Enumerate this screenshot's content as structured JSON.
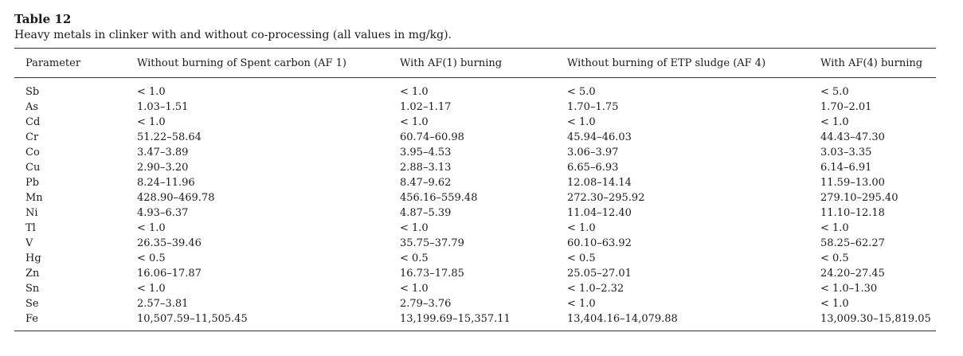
{
  "caption": {
    "label": "Table 12",
    "description": "Heavy metals in clinker with and without co-processing (all values in mg/kg)."
  },
  "table": {
    "headers": [
      "Parameter",
      "Without burning of Spent carbon (AF 1)",
      "With AF(1) burning",
      "Without burning of ETP sludge (AF 4)",
      "With AF(4) burning"
    ],
    "rows": [
      [
        "Sb",
        " < 1.0",
        " < 1.0",
        " < 5.0",
        " < 5.0"
      ],
      [
        "As",
        "1.03–1.51",
        "1.02–1.17",
        "1.70–1.75",
        "1.70–2.01"
      ],
      [
        "Cd",
        " < 1.0",
        " < 1.0",
        " < 1.0",
        " < 1.0"
      ],
      [
        "Cr",
        "51.22–58.64",
        "60.74–60.98",
        "45.94–46.03",
        "44.43–47.30"
      ],
      [
        "Co",
        "3.47–3.89",
        "3.95–4.53",
        "3.06–3.97",
        "3.03–3.35"
      ],
      [
        "Cu",
        "2.90–3.20",
        "2.88–3.13",
        "6.65–6.93",
        "6.14–6.91"
      ],
      [
        "Pb",
        "8.24–11.96",
        "8.47–9.62",
        "12.08–14.14",
        "11.59–13.00"
      ],
      [
        "Mn",
        "428.90–469.78",
        "456.16–559.48",
        "272.30–295.92",
        "279.10–295.40"
      ],
      [
        "Ni",
        "4.93–6.37",
        "4.87–5.39",
        "11.04–12.40",
        "11.10–12.18"
      ],
      [
        "Tl",
        " < 1.0",
        " < 1.0",
        " < 1.0",
        " < 1.0"
      ],
      [
        "V",
        "26.35–39.46",
        "35.75–37.79",
        "60.10–63.92",
        "58.25–62.27"
      ],
      [
        "Hg",
        " < 0.5",
        " < 0.5",
        " < 0.5",
        " < 0.5"
      ],
      [
        "Zn",
        "16.06–17.87",
        "16.73–17.85",
        "25.05–27.01",
        "24.20–27.45"
      ],
      [
        "Sn",
        " < 1.0",
        " < 1.0",
        " < 1.0–2.32",
        " < 1.0–1.30"
      ],
      [
        "Se",
        "2.57–3.81",
        "2.79–3.76",
        " < 1.0",
        " < 1.0"
      ],
      [
        "Fe",
        "10,507.59–11,505.45",
        "13,199.69–15,357.11",
        "13,404.16–14,079.88",
        "13,009.30–15,819.05"
      ]
    ]
  }
}
